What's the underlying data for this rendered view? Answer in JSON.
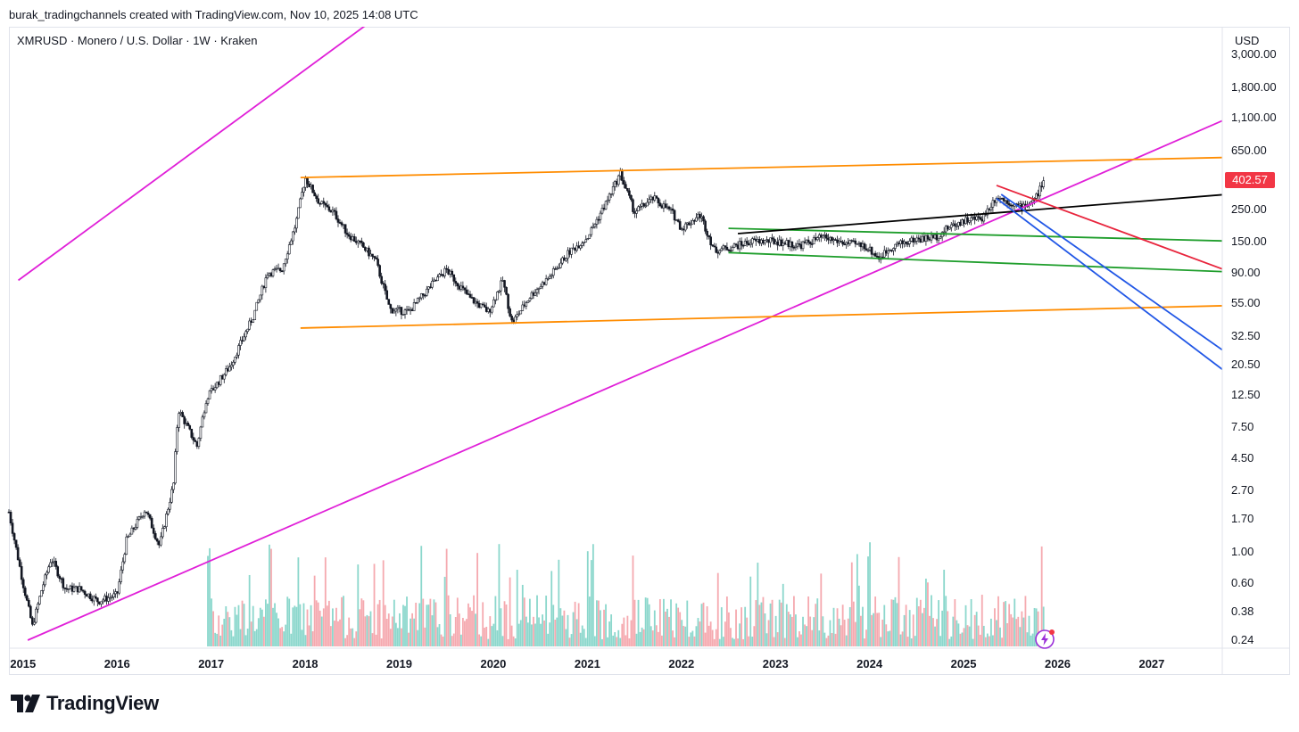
{
  "header": {
    "credit": "burak_tradingchannels created with TradingView.com, Nov 10, 2025 14:08 UTC"
  },
  "symbol_line": "XMRUSD · Monero / U.S. Dollar · 1W · Kraken",
  "currency": "USD",
  "brand": {
    "name": "TradingView",
    "logo_icon": "tradingview-logo-icon"
  },
  "colors": {
    "up": "#089981",
    "down": "#f23645",
    "candle": "#131722",
    "magenta": "#e020d8",
    "orange": "#ff8c00",
    "green": "#1f9e2c",
    "black": "#000000",
    "red": "#e8243c",
    "blue": "#2157e6"
  },
  "chart_data": {
    "type": "candlestick",
    "title": "XMRUSD · Monero / U.S. Dollar · 1W · Kraken",
    "scale": "log",
    "x_axis_labels": [
      "2015",
      "2016",
      "2017",
      "2018",
      "2019",
      "2020",
      "2021",
      "2022",
      "2023",
      "2024",
      "2025",
      "2026",
      "2027"
    ],
    "x_range": [
      2014.85,
      2027.75
    ],
    "y_axis_labels": [
      "3,000.00",
      "1,800.00",
      "1,100.00",
      "650.00",
      "402.57",
      "250.00",
      "150.00",
      "90.00",
      "55.00",
      "32.50",
      "20.50",
      "12.50",
      "7.50",
      "4.50",
      "2.70",
      "1.70",
      "1.00",
      "0.60",
      "0.38",
      "0.24"
    ],
    "y_ticks": [
      1800,
      1100,
      650,
      250,
      150,
      90,
      55,
      32.5,
      20.5,
      12.5,
      7.5,
      4.5,
      2.7,
      1.7,
      1.0,
      0.6,
      0.38,
      0.24
    ],
    "last_price": 402.57,
    "price_path": [
      [
        2014.85,
        1.9
      ],
      [
        2015.0,
        0.6
      ],
      [
        2015.1,
        0.3
      ],
      [
        2015.2,
        0.55
      ],
      [
        2015.3,
        0.9
      ],
      [
        2015.45,
        0.55
      ],
      [
        2015.6,
        0.55
      ],
      [
        2015.8,
        0.45
      ],
      [
        2016.0,
        0.5
      ],
      [
        2016.1,
        1.2
      ],
      [
        2016.3,
        2.0
      ],
      [
        2016.45,
        1.1
      ],
      [
        2016.6,
        3.0
      ],
      [
        2016.65,
        10.0
      ],
      [
        2016.85,
        5.5
      ],
      [
        2016.95,
        12.0
      ],
      [
        2017.2,
        20.0
      ],
      [
        2017.45,
        45.0
      ],
      [
        2017.6,
        90.0
      ],
      [
        2017.75,
        95.0
      ],
      [
        2017.9,
        200.0
      ],
      [
        2018.0,
        420.0
      ],
      [
        2018.15,
        280.0
      ],
      [
        2018.3,
        240.0
      ],
      [
        2018.45,
        170.0
      ],
      [
        2018.6,
        140.0
      ],
      [
        2018.75,
        110.0
      ],
      [
        2018.9,
        50.0
      ],
      [
        2019.1,
        48.0
      ],
      [
        2019.35,
        75.0
      ],
      [
        2019.5,
        95.0
      ],
      [
        2019.75,
        60.0
      ],
      [
        2019.95,
        48.0
      ],
      [
        2020.1,
        80.0
      ],
      [
        2020.2,
        40.0
      ],
      [
        2020.4,
        63.0
      ],
      [
        2020.6,
        85.0
      ],
      [
        2020.8,
        125.0
      ],
      [
        2021.0,
        160.0
      ],
      [
        2021.2,
        280.0
      ],
      [
        2021.35,
        450.0
      ],
      [
        2021.5,
        240.0
      ],
      [
        2021.7,
        300.0
      ],
      [
        2021.9,
        240.0
      ],
      [
        2022.0,
        185.0
      ],
      [
        2022.2,
        230.0
      ],
      [
        2022.35,
        130.0
      ],
      [
        2022.5,
        135.0
      ],
      [
        2022.75,
        150.0
      ],
      [
        2023.0,
        150.0
      ],
      [
        2023.25,
        140.0
      ],
      [
        2023.5,
        160.0
      ],
      [
        2023.75,
        145.0
      ],
      [
        2023.95,
        140.0
      ],
      [
        2024.1,
        115.0
      ],
      [
        2024.25,
        140.0
      ],
      [
        2024.5,
        155.0
      ],
      [
        2024.7,
        160.0
      ],
      [
        2024.85,
        190.0
      ],
      [
        2025.0,
        210.0
      ],
      [
        2025.2,
        220.0
      ],
      [
        2025.35,
        310.0
      ],
      [
        2025.5,
        280.0
      ],
      [
        2025.6,
        260.0
      ],
      [
        2025.75,
        290.0
      ],
      [
        2025.86,
        402.57
      ]
    ],
    "trendlines": [
      {
        "name": "magenta-upper-channel",
        "color": "magenta",
        "points": [
          [
            2014.95,
            80
          ],
          [
            2021.35,
            100000
          ]
        ]
      },
      {
        "name": "magenta-support",
        "color": "magenta",
        "points": [
          [
            2015.05,
            0.24
          ],
          [
            2027.75,
            1050
          ]
        ]
      },
      {
        "name": "orange-top",
        "color": "orange",
        "points": [
          [
            2017.95,
            420
          ],
          [
            2027.75,
            580
          ]
        ]
      },
      {
        "name": "orange-bottom",
        "color": "orange",
        "points": [
          [
            2017.95,
            37
          ],
          [
            2027.75,
            53
          ]
        ]
      },
      {
        "name": "green-upper",
        "color": "green",
        "points": [
          [
            2022.5,
            185
          ],
          [
            2027.75,
            151
          ]
        ]
      },
      {
        "name": "green-lower",
        "color": "green",
        "points": [
          [
            2022.5,
            125
          ],
          [
            2027.75,
            92
          ]
        ]
      },
      {
        "name": "black-rising",
        "color": "black",
        "points": [
          [
            2022.6,
            170
          ],
          [
            2027.75,
            318
          ]
        ]
      },
      {
        "name": "red-descending",
        "color": "red",
        "points": [
          [
            2025.35,
            370
          ],
          [
            2027.75,
            96
          ]
        ]
      },
      {
        "name": "blue-channel-upper",
        "color": "blue",
        "points": [
          [
            2025.4,
            320
          ],
          [
            2027.75,
            26
          ]
        ]
      },
      {
        "name": "blue-channel-lower",
        "color": "blue",
        "points": [
          [
            2025.35,
            300
          ],
          [
            2027.75,
            19
          ]
        ]
      }
    ]
  }
}
